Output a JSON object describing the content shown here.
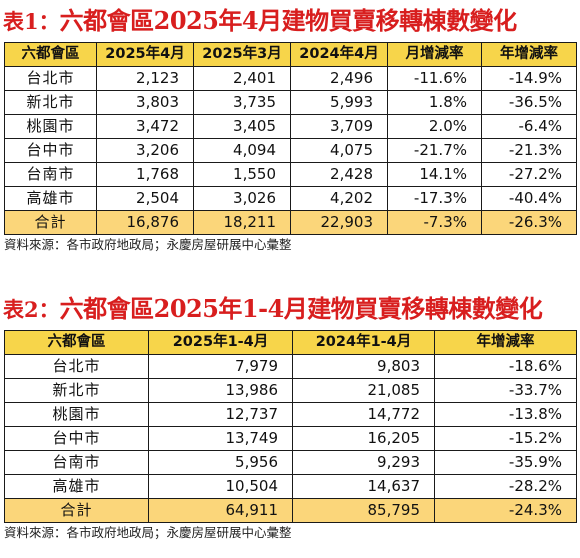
{
  "table1": {
    "prefix": "表1：",
    "title": "六都會區2025年4月建物買賣移轉棟數變化",
    "headers": [
      "六都會區",
      "2025年4月",
      "2025年3月",
      "2024年4月",
      "月增減率",
      "年增減率"
    ],
    "rows": [
      [
        "台北市",
        "2,123",
        "2,401",
        "2,496",
        "-11.6%",
        "-14.9%"
      ],
      [
        "新北市",
        "3,803",
        "3,735",
        "5,993",
        "1.8%",
        "-36.5%"
      ],
      [
        "桃園市",
        "3,472",
        "3,405",
        "3,709",
        "2.0%",
        "-6.4%"
      ],
      [
        "台中市",
        "3,206",
        "4,094",
        "4,075",
        "-21.7%",
        "-21.3%"
      ],
      [
        "台南市",
        "1,768",
        "1,550",
        "2,428",
        "14.1%",
        "-27.2%"
      ],
      [
        "高雄市",
        "2,504",
        "3,026",
        "4,202",
        "-17.3%",
        "-40.4%"
      ]
    ],
    "total": [
      "合計",
      "16,876",
      "18,211",
      "22,903",
      "-7.3%",
      "-26.3%"
    ],
    "source": "資料來源：各市政府地政局；永慶房屋研展中心彙整"
  },
  "table2": {
    "prefix": "表2：",
    "title": "六都會區2025年1-4月建物買賣移轉棟數變化",
    "headers": [
      "六都會區",
      "2025年1-4月",
      "2024年1-4月",
      "年增減率"
    ],
    "rows": [
      [
        "台北市",
        "7,979",
        "9,803",
        "-18.6%"
      ],
      [
        "新北市",
        "13,986",
        "21,085",
        "-33.7%"
      ],
      [
        "桃園市",
        "12,737",
        "14,772",
        "-13.8%"
      ],
      [
        "台中市",
        "13,749",
        "16,205",
        "-15.2%"
      ],
      [
        "台南市",
        "5,956",
        "9,293",
        "-35.9%"
      ],
      [
        "高雄市",
        "10,504",
        "14,637",
        "-28.2%"
      ]
    ],
    "total": [
      "合計",
      "64,911",
      "85,795",
      "-24.3%"
    ],
    "source": "資料來源：各市政府地政局；永慶房屋研展中心彙整"
  }
}
